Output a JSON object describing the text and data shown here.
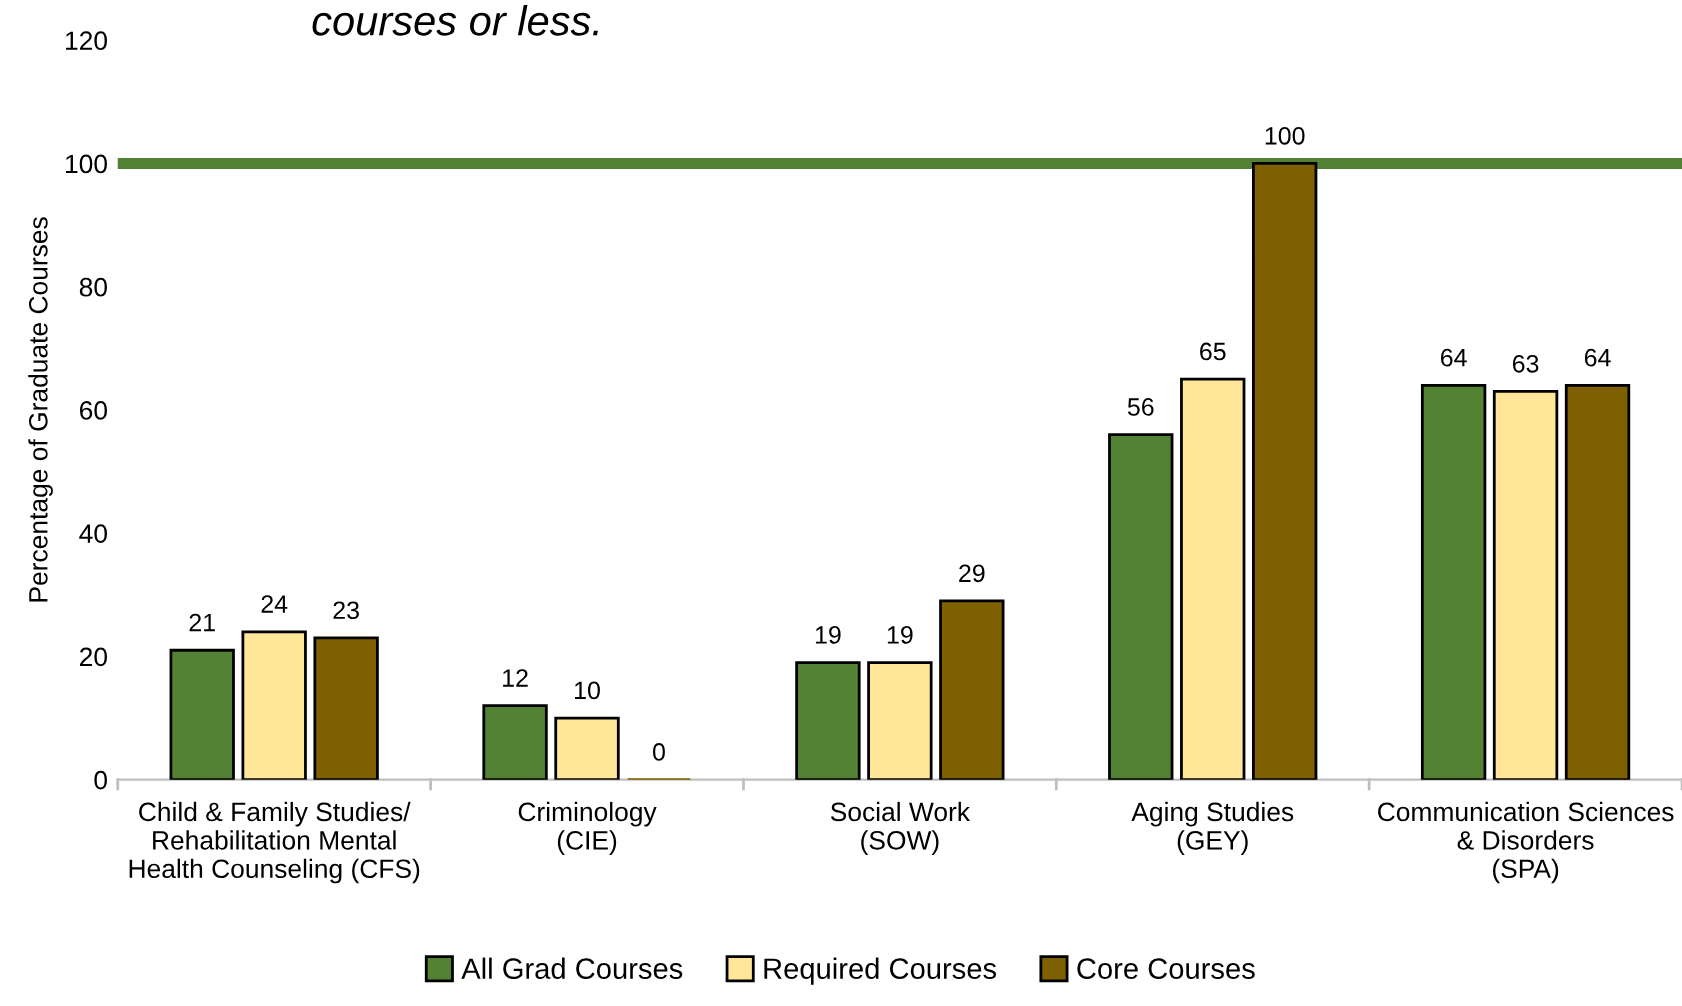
{
  "chart_data": {
    "type": "bar",
    "title": "courses or less.",
    "ylabel": "Percentage of Graduate Courses",
    "categories": [
      "Child & Family Studies/\nRehabilitation Mental\nHealth Counseling (CFS)",
      "Criminology\n(CIE)",
      "Social Work\n(SOW)",
      "Aging Studies\n(GEY)",
      "Communication Sciences\n& Disorders\n(SPA)"
    ],
    "series": [
      {
        "name": "All Grad Courses",
        "color": "#548235",
        "values": [
          21,
          12,
          19,
          56,
          64
        ]
      },
      {
        "name": "Required Courses",
        "color": "#ffe699",
        "values": [
          24,
          10,
          19,
          65,
          63
        ]
      },
      {
        "name": "Core Courses",
        "color": "#7f6000",
        "values": [
          23,
          0,
          29,
          100,
          64
        ]
      }
    ],
    "ylim": [
      0,
      120
    ],
    "yticks": [
      0,
      20,
      40,
      60,
      80,
      100,
      120
    ],
    "ref_lines": [
      {
        "axis": "y",
        "value": 100,
        "color": "#548235"
      }
    ],
    "data_labels": true,
    "legend": "bottom",
    "grid": false
  }
}
